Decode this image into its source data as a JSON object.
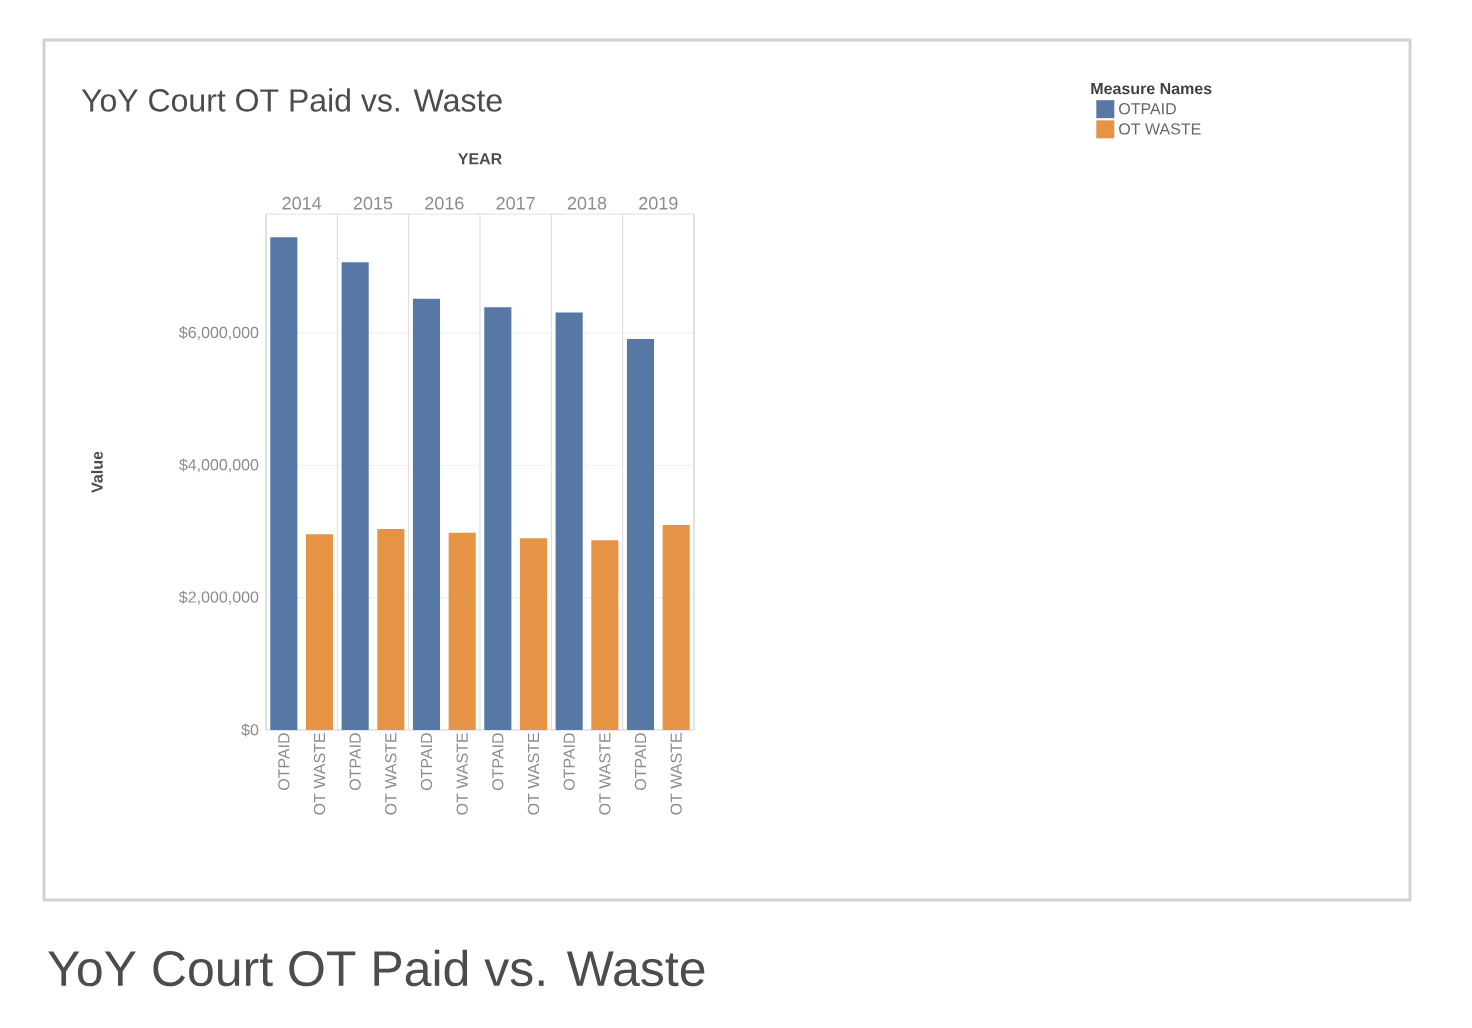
{
  "chart_data": {
    "type": "bar",
    "title": "YoY Court OT Paid vs. Waste",
    "xlabel": "YEAR",
    "ylabel": "Value",
    "legend_title": "Measure Names",
    "categories": [
      "2014",
      "2015",
      "2016",
      "2017",
      "2018",
      "2019"
    ],
    "series": [
      {
        "name": "OTPAID",
        "color": "#5778a4",
        "values": [
          7450000,
          7070000,
          6520000,
          6390000,
          6310000,
          5910000
        ]
      },
      {
        "name": "OT WASTE",
        "color": "#e49444",
        "values": [
          2960000,
          3040000,
          2980000,
          2900000,
          2870000,
          3100000
        ]
      }
    ],
    "ylim": [
      0,
      7800000
    ],
    "yticks": [
      {
        "value": 0,
        "label": "$0"
      },
      {
        "value": 2000000,
        "label": "$2,000,000"
      },
      {
        "value": 4000000,
        "label": "$4,000,000"
      },
      {
        "value": 6000000,
        "label": "$6,000,000"
      }
    ],
    "grid": "y",
    "legend": "top right",
    "annotations": [
      "YoY Court OT Paid vs. Waste"
    ]
  }
}
